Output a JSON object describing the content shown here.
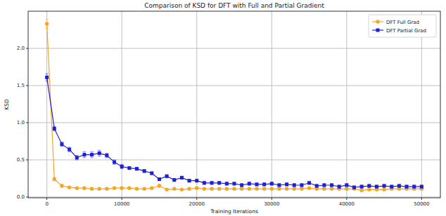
{
  "chart_data": {
    "type": "line",
    "title": "Comparison of KSD for DFT with Full and Partial Gradient",
    "x_label": "Training Iterations",
    "y_label": "KSD",
    "x": [
      0,
      1000,
      2000,
      3000,
      4000,
      5000,
      6000,
      7000,
      8000,
      9000,
      10000,
      11000,
      12000,
      13000,
      14000,
      15000,
      16000,
      17000,
      18000,
      19000,
      20000,
      21000,
      22000,
      23000,
      24000,
      25000,
      26000,
      27000,
      28000,
      29000,
      30000,
      31000,
      32000,
      33000,
      34000,
      35000,
      36000,
      37000,
      38000,
      39000,
      40000,
      41000,
      42000,
      43000,
      44000,
      45000,
      46000,
      47000,
      48000,
      49000,
      50000
    ],
    "series": [
      {
        "name": "DFT Full Grad",
        "color": "#f5a623",
        "marker": "circle",
        "line_style": "solid",
        "values": [
          2.33,
          0.24,
          0.15,
          0.13,
          0.12,
          0.12,
          0.11,
          0.11,
          0.11,
          0.12,
          0.12,
          0.12,
          0.11,
          0.11,
          0.12,
          0.15,
          0.1,
          0.11,
          0.1,
          0.11,
          0.12,
          0.11,
          0.11,
          0.11,
          0.11,
          0.11,
          0.11,
          0.11,
          0.11,
          0.11,
          0.11,
          0.11,
          0.11,
          0.11,
          0.11,
          0.12,
          0.11,
          0.11,
          0.11,
          0.11,
          0.11,
          0.11,
          0.09,
          0.1,
          0.1,
          0.1,
          0.11,
          0.11,
          0.11,
          0.11,
          0.11
        ],
        "errors": [
          0.06,
          0.02,
          0.02,
          0.01,
          0.01,
          0.01,
          0.01,
          0.01,
          0.01,
          0.01,
          0.01,
          0.01,
          0.01,
          0.01,
          0.01,
          0.02,
          0.01,
          0.01,
          0.01,
          0.01,
          0.01,
          0.01,
          0.01,
          0.01,
          0.01,
          0.01,
          0.01,
          0.01,
          0.01,
          0.01,
          0.01,
          0.01,
          0.01,
          0.01,
          0.01,
          0.01,
          0.01,
          0.01,
          0.01,
          0.01,
          0.01,
          0.01,
          0.01,
          0.01,
          0.01,
          0.01,
          0.01,
          0.01,
          0.01,
          0.01,
          0.01
        ]
      },
      {
        "name": "DFT Partial Grad",
        "color": "#1f1fd6",
        "marker": "square",
        "line_style": "solid",
        "values": [
          1.61,
          0.92,
          0.71,
          0.64,
          0.53,
          0.57,
          0.57,
          0.59,
          0.56,
          0.47,
          0.41,
          0.39,
          0.38,
          0.35,
          0.32,
          0.24,
          0.28,
          0.23,
          0.26,
          0.22,
          0.22,
          0.19,
          0.19,
          0.19,
          0.18,
          0.18,
          0.16,
          0.18,
          0.17,
          0.17,
          0.18,
          0.16,
          0.17,
          0.16,
          0.16,
          0.19,
          0.15,
          0.16,
          0.16,
          0.14,
          0.16,
          0.13,
          0.14,
          0.15,
          0.14,
          0.15,
          0.14,
          0.15,
          0.14,
          0.14,
          0.14
        ],
        "errors": [
          0.05,
          0.03,
          0.03,
          0.03,
          0.03,
          0.04,
          0.04,
          0.04,
          0.03,
          0.03,
          0.03,
          0.02,
          0.02,
          0.02,
          0.02,
          0.02,
          0.02,
          0.02,
          0.02,
          0.02,
          0.02,
          0.02,
          0.02,
          0.02,
          0.02,
          0.02,
          0.02,
          0.02,
          0.02,
          0.02,
          0.02,
          0.02,
          0.02,
          0.02,
          0.02,
          0.02,
          0.02,
          0.02,
          0.02,
          0.02,
          0.02,
          0.02,
          0.02,
          0.02,
          0.02,
          0.02,
          0.02,
          0.02,
          0.02,
          0.02,
          0.02
        ]
      }
    ],
    "xlim": [
      -2500,
      52500
    ],
    "ylim": [
      -0.01,
      2.5
    ],
    "xticks": [
      0,
      10000,
      20000,
      30000,
      40000,
      50000
    ],
    "yticks": [
      {
        "value": 0,
        "label": "0.0"
      },
      {
        "value": 0.5,
        "label": "0.5"
      },
      {
        "value": 1,
        "label": "1.0"
      },
      {
        "value": 1.5,
        "label": "1.5"
      },
      {
        "value": 2,
        "label": "2.0"
      }
    ],
    "grid": true,
    "legend": "upper right"
  }
}
